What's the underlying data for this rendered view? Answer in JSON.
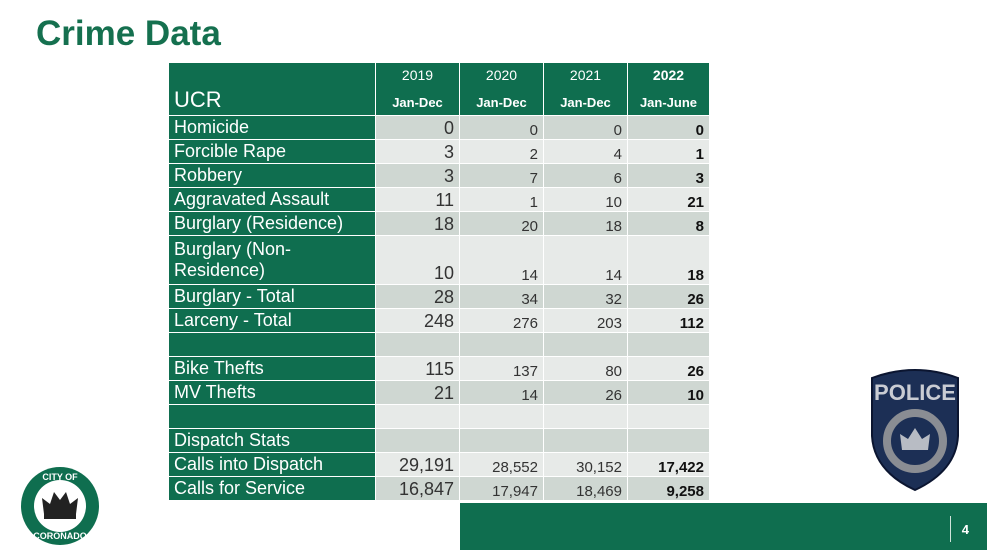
{
  "title": "Crime Data",
  "page_number": "4",
  "table": {
    "header": {
      "label": "UCR",
      "columns": [
        {
          "year": "2019",
          "period": "Jan-Dec"
        },
        {
          "year": "2020",
          "period": "Jan-Dec"
        },
        {
          "year": "2021",
          "period": "Jan-Dec"
        },
        {
          "year": "2022",
          "period": "Jan-June"
        }
      ]
    },
    "rows": [
      {
        "label": "Homicide",
        "values": [
          "0",
          "0",
          "0",
          "0"
        ]
      },
      {
        "label": "Forcible Rape",
        "values": [
          "3",
          "2",
          "4",
          "1"
        ]
      },
      {
        "label": "Robbery",
        "values": [
          "3",
          "7",
          "6",
          "3"
        ]
      },
      {
        "label": "Aggravated Assault",
        "values": [
          "11",
          "1",
          "10",
          "21"
        ]
      },
      {
        "label": "Burglary (Residence)",
        "values": [
          "18",
          "20",
          "18",
          "8"
        ]
      },
      {
        "label": "Burglary (Non-Residence)",
        "values": [
          "10",
          "14",
          "14",
          "18"
        ]
      },
      {
        "label": "Burglary - Total",
        "values": [
          "28",
          "34",
          "32",
          "26"
        ]
      },
      {
        "label": "Larceny - Total",
        "values": [
          "248",
          "276",
          "203",
          "112"
        ]
      },
      {
        "label": "",
        "values": [
          "",
          "",
          "",
          ""
        ]
      },
      {
        "label": "Bike Thefts",
        "values": [
          "115",
          "137",
          "80",
          "26"
        ]
      },
      {
        "label": "MV Thefts",
        "values": [
          "21",
          "14",
          "26",
          "10"
        ]
      },
      {
        "label": "",
        "values": [
          "",
          "",
          "",
          ""
        ]
      },
      {
        "label": "Dispatch Stats",
        "values": [
          "",
          "",
          "",
          ""
        ]
      },
      {
        "label": "Calls into Dispatch",
        "values": [
          "29,191",
          "28,552",
          "30,152",
          "17,422"
        ]
      },
      {
        "label": "Calls for Service",
        "values": [
          "16,847",
          "17,947",
          "18,469",
          "9,258"
        ]
      }
    ]
  },
  "logos": {
    "city_seal": "CITY OF CORONADO",
    "police_badge": "POLICE CITY OF CORONADO 1890"
  },
  "colors": {
    "brand_green": "#0f6e4f"
  }
}
